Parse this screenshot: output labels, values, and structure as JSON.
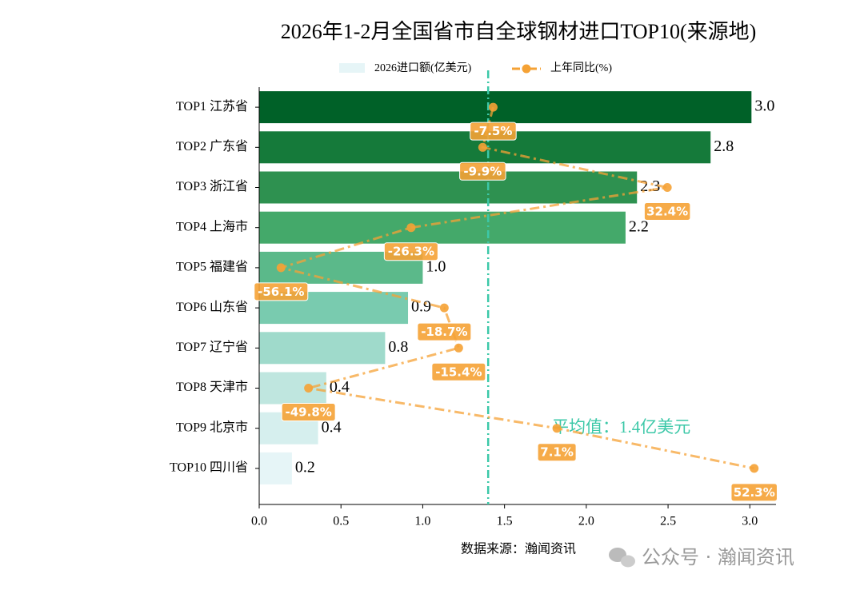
{
  "chart_data": {
    "type": "bar",
    "orientation": "horizontal",
    "title": "2026年1-2月全国省市自全球钢材进口TOP10(来源地)",
    "categories": [
      "TOP1 江苏省",
      "TOP2 广东省",
      "TOP3 浙江省",
      "TOP4 上海市",
      "TOP5 福建省",
      "TOP6 山东省",
      "TOP7 辽宁省",
      "TOP8 天津市",
      "TOP9 北京市",
      "TOP10 四川省"
    ],
    "series": [
      {
        "name": "2026进口额(亿美元)",
        "colors": [
          "#006128",
          "#157a3a",
          "#2e9150",
          "#44a96a",
          "#5bb98a",
          "#79cbaf",
          "#9fdacb",
          "#bfe6df",
          "#d6efee",
          "#e6f5f7"
        ],
        "values": [
          3.01,
          2.76,
          2.31,
          2.24,
          1.0,
          0.91,
          0.77,
          0.41,
          0.36,
          0.2
        ],
        "value_labels": [
          "3.0",
          "2.8",
          "2.3",
          "2.2",
          "1.0",
          "0.9",
          "0.8",
          "0.4",
          "0.4",
          "0.2"
        ]
      },
      {
        "name": "上年同比(%)",
        "type": "line",
        "axis": "x2",
        "color": "#f5a235",
        "values": [
          -7.5,
          -9.9,
          32.4,
          -26.3,
          -56.1,
          -18.7,
          -15.4,
          -49.8,
          7.1,
          52.3
        ],
        "value_labels": [
          "-7.5%",
          "-9.9%",
          "32.4%",
          "-26.3%",
          "-56.1%",
          "-18.7%",
          "-15.4%",
          "-49.8%",
          "7.1%",
          "52.3%"
        ]
      }
    ],
    "xlim": [
      0,
      3.16
    ],
    "xticks": [
      {
        "value": 0,
        "label": "0.0"
      },
      0.5,
      {
        "value": 1,
        "label": "1.0"
      },
      1.5,
      {
        "value": 2,
        "label": "2.0"
      },
      2.5,
      {
        "value": 3,
        "label": "3.0"
      }
    ],
    "x2lim": [
      -61.1,
      57.3
    ],
    "mean": {
      "value": 1.4,
      "label": "平均值：1.4亿美元",
      "color": "#3cc8a8"
    },
    "source": "数据来源：瀚闻资讯",
    "watermark": "公众号 · 瀚闻资讯"
  }
}
